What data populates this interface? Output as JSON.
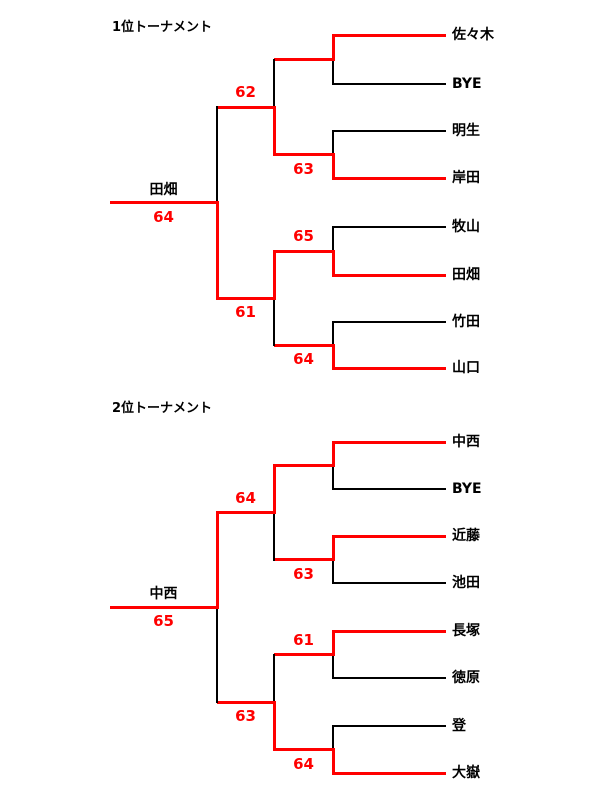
{
  "colors": {
    "winner_line": "#ff0000",
    "line": "#000000",
    "score_text": "#ff0000",
    "text": "#000000",
    "background": "#ffffff"
  },
  "brackets": [
    {
      "title": "1位トーナメント",
      "players": [
        "佐々木",
        "BYE",
        "明生",
        "岸田",
        "牧山",
        "田畑",
        "竹田",
        "山口"
      ],
      "round1": [
        {
          "top": "佐々木",
          "bottom": "BYE",
          "winner": "top",
          "score": "",
          "score_pos": ""
        },
        {
          "top": "明生",
          "bottom": "岸田",
          "winner": "bottom",
          "score": "63",
          "score_pos": "below"
        },
        {
          "top": "牧山",
          "bottom": "田畑",
          "winner": "bottom",
          "score": "65",
          "score_pos": "above"
        },
        {
          "top": "竹田",
          "bottom": "山口",
          "winner": "bottom",
          "score": "64",
          "score_pos": "below"
        }
      ],
      "semifinals": [
        {
          "top": "佐々木",
          "bottom": "岸田",
          "winner": "bottom",
          "score": "62",
          "score_pos": "above"
        },
        {
          "top": "田畑",
          "bottom": "山口",
          "winner": "top",
          "score": "61",
          "score_pos": "below"
        }
      ],
      "final": {
        "top": "岸田",
        "bottom": "田畑",
        "winner": "bottom",
        "score": "64",
        "score_pos": "below"
      },
      "champion": {
        "name": "田畑",
        "score": "64"
      }
    },
    {
      "title": "2位トーナメント",
      "players": [
        "中西",
        "BYE",
        "近藤",
        "池田",
        "長塚",
        "徳原",
        "登",
        "大嶽"
      ],
      "round1": [
        {
          "top": "中西",
          "bottom": "BYE",
          "winner": "top",
          "score": "",
          "score_pos": ""
        },
        {
          "top": "近藤",
          "bottom": "池田",
          "winner": "top",
          "score": "63",
          "score_pos": "below"
        },
        {
          "top": "長塚",
          "bottom": "徳原",
          "winner": "top",
          "score": "61",
          "score_pos": "above"
        },
        {
          "top": "登",
          "bottom": "大嶽",
          "winner": "bottom",
          "score": "64",
          "score_pos": "below"
        }
      ],
      "semifinals": [
        {
          "top": "中西",
          "bottom": "近藤",
          "winner": "top",
          "score": "64",
          "score_pos": "above"
        },
        {
          "top": "長塚",
          "bottom": "大嶽",
          "winner": "bottom",
          "score": "63",
          "score_pos": "below"
        }
      ],
      "final": {
        "top": "中西",
        "bottom": "大嶽",
        "winner": "top",
        "score": "65",
        "score_pos": "below"
      },
      "champion": {
        "name": "中西",
        "score": "65"
      }
    }
  ]
}
